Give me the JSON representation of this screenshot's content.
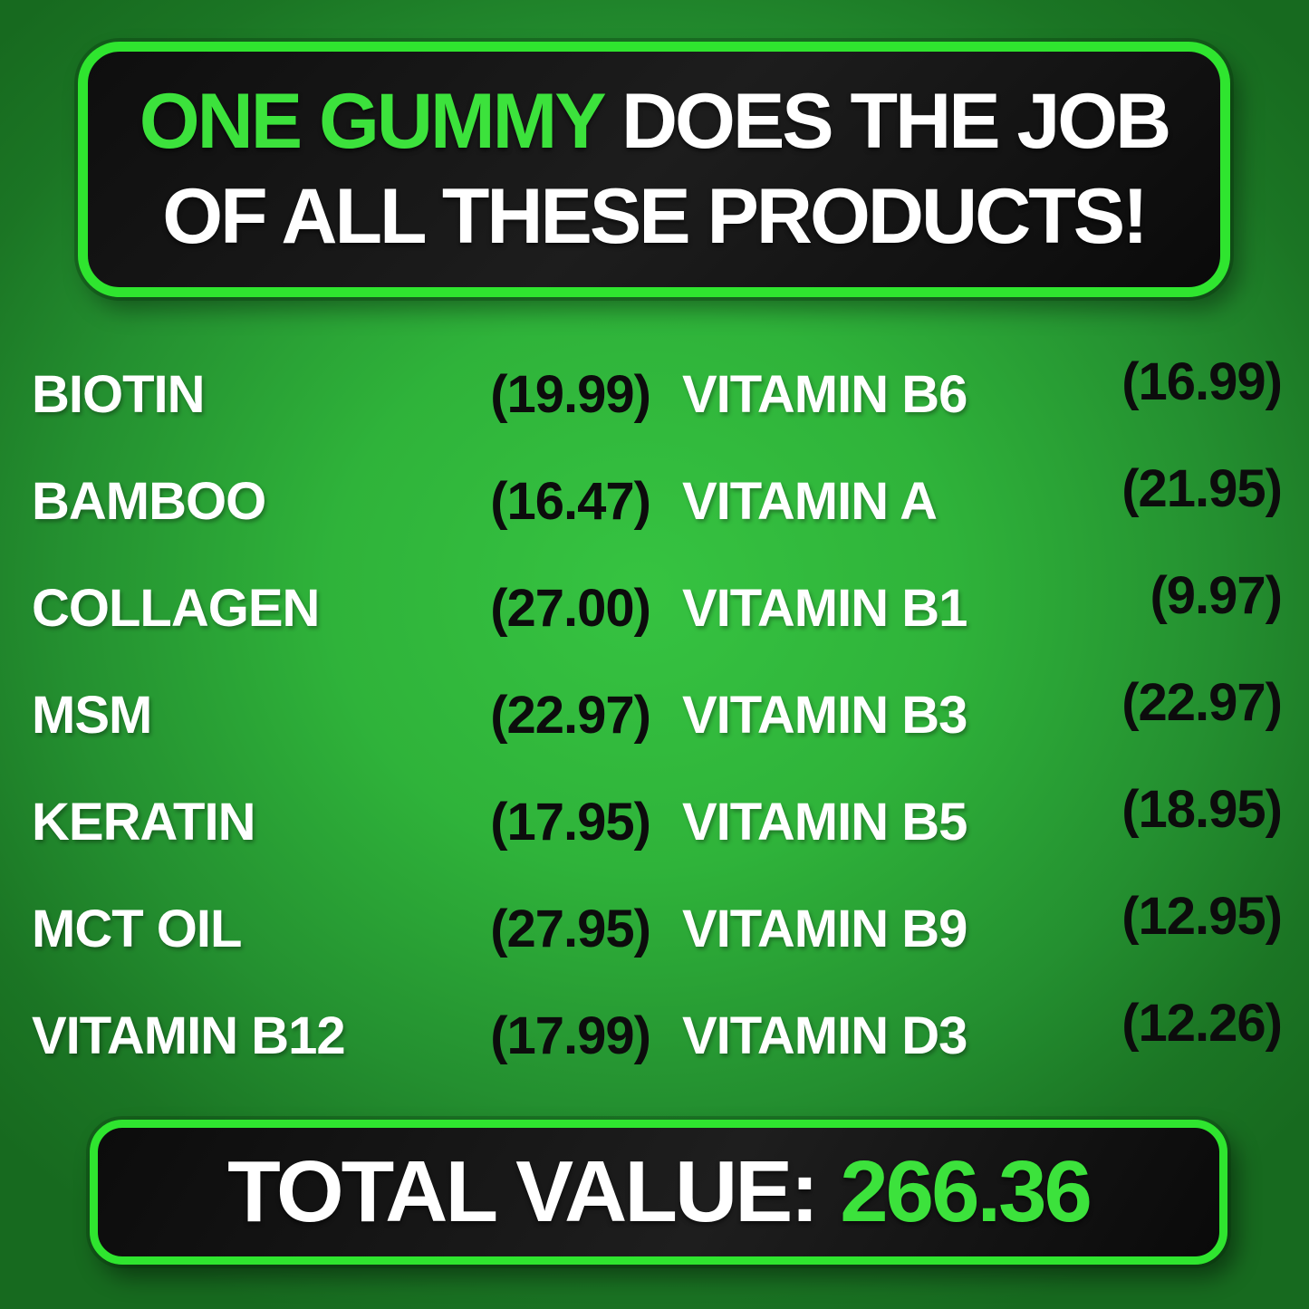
{
  "header": {
    "line1_highlight": "ONE GUMMY",
    "line1_rest": " DOES THE JOB",
    "line2": "OF ALL THESE PRODUCTS!"
  },
  "products": {
    "rows": [
      {
        "left_name": "BIOTIN",
        "left_price": "(19.99)",
        "right_name": "VITAMIN B6",
        "right_price": "(16.99)"
      },
      {
        "left_name": "BAMBOO",
        "left_price": "(16.47)",
        "right_name": "VITAMIN A",
        "right_price": "(21.95)"
      },
      {
        "left_name": "COLLAGEN",
        "left_price": "(27.00)",
        "right_name": "VITAMIN B1",
        "right_price": "(9.97)"
      },
      {
        "left_name": "MSM",
        "left_price": "(22.97)",
        "right_name": "VITAMIN B3",
        "right_price": "(22.97)"
      },
      {
        "left_name": "KERATIN",
        "left_price": "(17.95)",
        "right_name": "VITAMIN B5",
        "right_price": "(18.95)"
      },
      {
        "left_name": "MCT OIL",
        "left_price": "(27.95)",
        "right_name": "VITAMIN B9",
        "right_price": "(12.95)"
      },
      {
        "left_name": "VITAMIN B12",
        "left_price": "(17.99)",
        "right_name": "VITAMIN D3",
        "right_price": "(12.26)"
      }
    ]
  },
  "total": {
    "label": "TOTAL VALUE:",
    "value": "266.36"
  },
  "colors": {
    "accent_green": "#3ce23c",
    "border_green": "#2fe52f",
    "background_center_green": "#36c341",
    "background_edge_green": "#176a1f",
    "banner_black": "#141414",
    "price_text": "#0c0c0c",
    "name_text": "#ffffff"
  }
}
